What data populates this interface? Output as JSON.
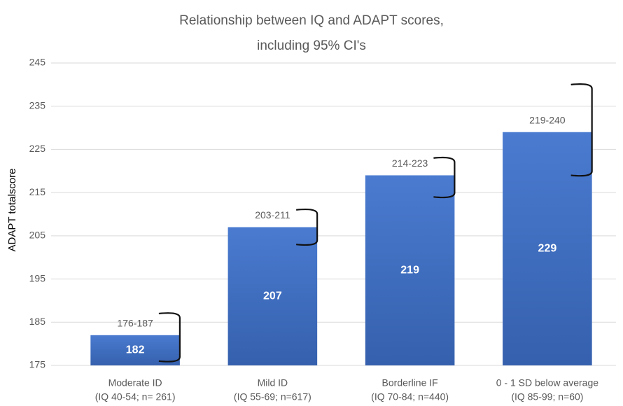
{
  "chart_data": {
    "type": "bar",
    "title": [
      "Relationship between IQ and ADAPT scores,",
      "including 95% CI's"
    ],
    "y_label": "ADAPT totalscore",
    "categories": [
      [
        "Moderate ID",
        "(IQ 40-54; n= 261)"
      ],
      [
        "Mild ID",
        "(IQ 55-69; n=617)"
      ],
      [
        "Borderline IF",
        "(IQ 70-84; n=440)"
      ],
      [
        "0 - 1 SD below average",
        "(IQ 85-99; n=60)"
      ]
    ],
    "values": [
      182,
      207,
      219,
      229
    ],
    "ci_lower": [
      176,
      203,
      214,
      219
    ],
    "ci_upper": [
      187,
      211,
      223,
      240
    ],
    "ci_labels": [
      "176-187",
      "203-211",
      "214-223",
      "219-240"
    ],
    "color": "#4472c4",
    "ylim": [
      175,
      245
    ],
    "yticks": [
      175,
      185,
      195,
      205,
      215,
      225,
      235,
      245
    ],
    "grid": true
  }
}
